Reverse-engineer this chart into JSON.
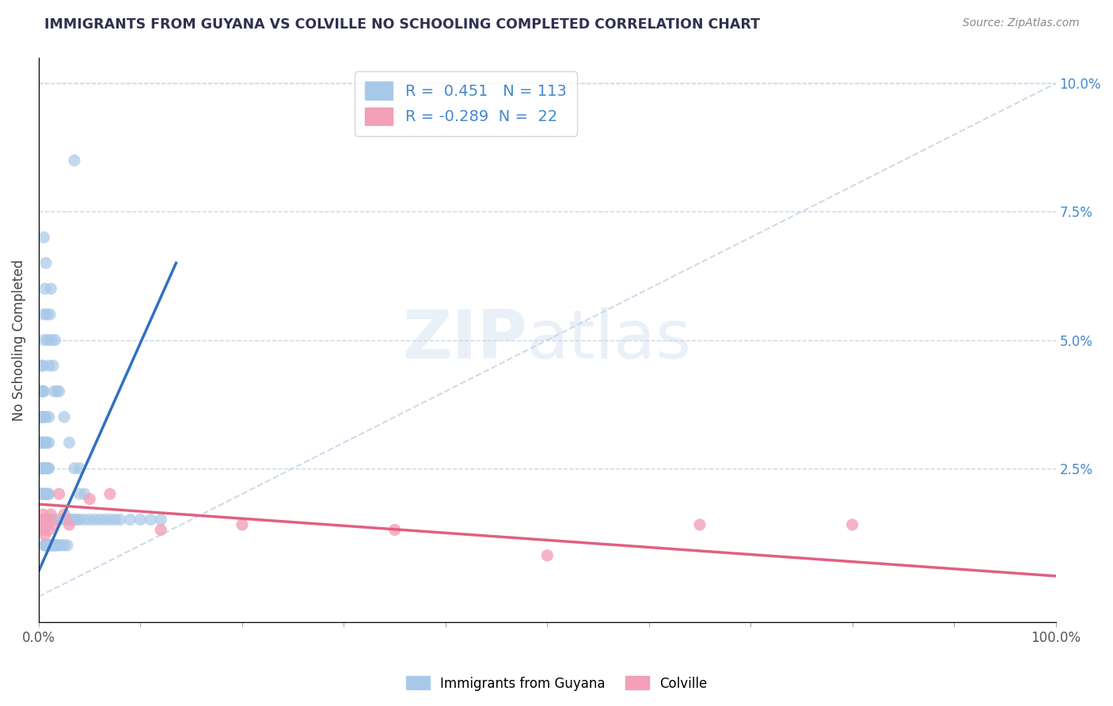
{
  "title": "IMMIGRANTS FROM GUYANA VS COLVILLE NO SCHOOLING COMPLETED CORRELATION CHART",
  "source_text": "Source: ZipAtlas.com",
  "ylabel": "No Schooling Completed",
  "legend_label_1": "Immigrants from Guyana",
  "legend_label_2": "Colville",
  "R1": 0.451,
  "N1": 113,
  "R2": -0.289,
  "N2": 22,
  "color1": "#A8C8E8",
  "color2": "#F4A0B8",
  "line_color1": "#3070C0",
  "line_color2": "#E06080",
  "ref_line_color": "#C8D8E8",
  "background_color": "#FFFFFF",
  "title_color": "#303050",
  "xlim": [
    0.0,
    1.0
  ],
  "ylim": [
    -0.005,
    0.105
  ],
  "x_ticks": [
    0.0,
    0.1,
    0.2,
    0.3,
    0.4,
    0.5,
    0.6,
    0.7,
    0.8,
    0.9,
    1.0
  ],
  "y_ticks": [
    0.0,
    0.025,
    0.05,
    0.075,
    0.1
  ],
  "y_tick_labels_right": [
    "",
    "2.5%",
    "5.0%",
    "7.5%",
    "10.0%"
  ],
  "x_tick_labels": [
    "0.0%",
    "",
    "",
    "",
    "",
    "",
    "",
    "",
    "",
    "",
    "100.0%"
  ],
  "blue_line_x": [
    0.0,
    0.135
  ],
  "blue_line_y": [
    0.005,
    0.065
  ],
  "pink_line_x": [
    0.0,
    1.0
  ],
  "pink_line_y": [
    0.018,
    0.004
  ],
  "ref_line_x": [
    0.0,
    1.0
  ],
  "ref_line_y": [
    0.0,
    0.1
  ],
  "blue_x": [
    0.001,
    0.001,
    0.001,
    0.002,
    0.002,
    0.002,
    0.002,
    0.002,
    0.003,
    0.003,
    0.003,
    0.003,
    0.003,
    0.003,
    0.003,
    0.004,
    0.004,
    0.004,
    0.004,
    0.004,
    0.004,
    0.004,
    0.005,
    0.005,
    0.005,
    0.005,
    0.005,
    0.005,
    0.005,
    0.005,
    0.006,
    0.006,
    0.006,
    0.006,
    0.006,
    0.006,
    0.007,
    0.007,
    0.007,
    0.007,
    0.007,
    0.007,
    0.008,
    0.008,
    0.008,
    0.008,
    0.008,
    0.009,
    0.009,
    0.009,
    0.009,
    0.01,
    0.01,
    0.01,
    0.01,
    0.01,
    0.01,
    0.011,
    0.011,
    0.012,
    0.012,
    0.013,
    0.013,
    0.014,
    0.015,
    0.015,
    0.016,
    0.018,
    0.02,
    0.02,
    0.022,
    0.025,
    0.025,
    0.028,
    0.03,
    0.032,
    0.035,
    0.038,
    0.04,
    0.04,
    0.045,
    0.05,
    0.055,
    0.06,
    0.065,
    0.07,
    0.075,
    0.08,
    0.09,
    0.1,
    0.11,
    0.12,
    0.035,
    0.04,
    0.045,
    0.005,
    0.005,
    0.006,
    0.007,
    0.008,
    0.009,
    0.01,
    0.011,
    0.012,
    0.013,
    0.014,
    0.015,
    0.016,
    0.018,
    0.02,
    0.025,
    0.03,
    0.035
  ],
  "blue_y": [
    0.025,
    0.03,
    0.035,
    0.02,
    0.025,
    0.03,
    0.035,
    0.04,
    0.015,
    0.02,
    0.025,
    0.03,
    0.035,
    0.04,
    0.045,
    0.015,
    0.02,
    0.025,
    0.03,
    0.035,
    0.04,
    0.045,
    0.01,
    0.015,
    0.02,
    0.025,
    0.03,
    0.035,
    0.04,
    0.05,
    0.01,
    0.015,
    0.02,
    0.025,
    0.03,
    0.035,
    0.01,
    0.015,
    0.02,
    0.025,
    0.03,
    0.035,
    0.01,
    0.015,
    0.02,
    0.025,
    0.03,
    0.01,
    0.015,
    0.02,
    0.025,
    0.01,
    0.015,
    0.02,
    0.025,
    0.03,
    0.035,
    0.01,
    0.015,
    0.01,
    0.015,
    0.01,
    0.015,
    0.01,
    0.01,
    0.015,
    0.01,
    0.01,
    0.01,
    0.015,
    0.01,
    0.01,
    0.015,
    0.01,
    0.015,
    0.015,
    0.015,
    0.015,
    0.015,
    0.02,
    0.015,
    0.015,
    0.015,
    0.015,
    0.015,
    0.015,
    0.015,
    0.015,
    0.015,
    0.015,
    0.015,
    0.015,
    0.025,
    0.025,
    0.02,
    0.055,
    0.07,
    0.06,
    0.065,
    0.055,
    0.05,
    0.045,
    0.055,
    0.06,
    0.05,
    0.045,
    0.04,
    0.05,
    0.04,
    0.04,
    0.035,
    0.03,
    0.085
  ],
  "pink_x": [
    0.001,
    0.002,
    0.003,
    0.004,
    0.005,
    0.006,
    0.007,
    0.008,
    0.01,
    0.012,
    0.015,
    0.02,
    0.025,
    0.03,
    0.05,
    0.07,
    0.12,
    0.2,
    0.35,
    0.5,
    0.65,
    0.8
  ],
  "pink_y": [
    0.015,
    0.013,
    0.014,
    0.016,
    0.013,
    0.012,
    0.014,
    0.015,
    0.013,
    0.016,
    0.014,
    0.02,
    0.016,
    0.014,
    0.019,
    0.02,
    0.013,
    0.014,
    0.013,
    0.008,
    0.014,
    0.014
  ]
}
